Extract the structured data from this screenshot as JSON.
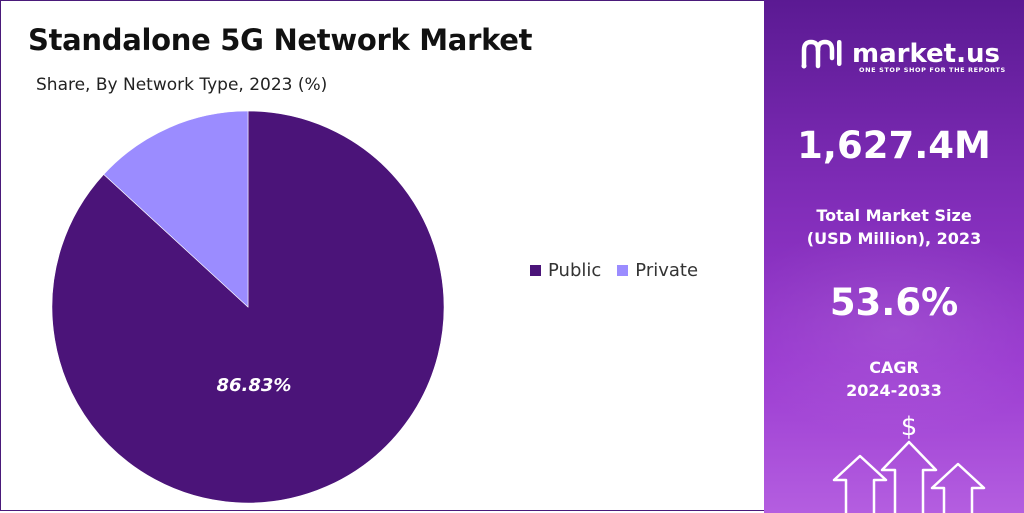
{
  "title": "Standalone 5G Network Market",
  "subtitle": "Share, By Network Type, 2023 (%)",
  "chart_data": {
    "type": "pie",
    "title": "Standalone 5G Network Market",
    "subtitle": "Share, By Network Type, 2023 (%)",
    "slices": [
      {
        "label": "Public",
        "value": 86.83,
        "color": "#4b1479",
        "data_label": "86.83%"
      },
      {
        "label": "Private",
        "value": 13.17,
        "color": "#9b8cff"
      }
    ],
    "legend_position": "right"
  },
  "legend": [
    {
      "label": "Public",
      "color": "#4b1479"
    },
    {
      "label": "Private",
      "color": "#9b8cff"
    }
  ],
  "brand": {
    "name": "market.us",
    "tagline": "ONE STOP SHOP FOR THE REPORTS"
  },
  "stats": {
    "market_size": "1,627.4M",
    "market_size_label_line1": "Total Market Size",
    "market_size_label_line2": "(USD Million), 2023",
    "cagr": "53.6%",
    "cagr_label_line1": "CAGR",
    "cagr_label_line2": "2024-2033"
  },
  "icons": {
    "dollar": "$",
    "arrows": "growth-arrows-icon"
  }
}
